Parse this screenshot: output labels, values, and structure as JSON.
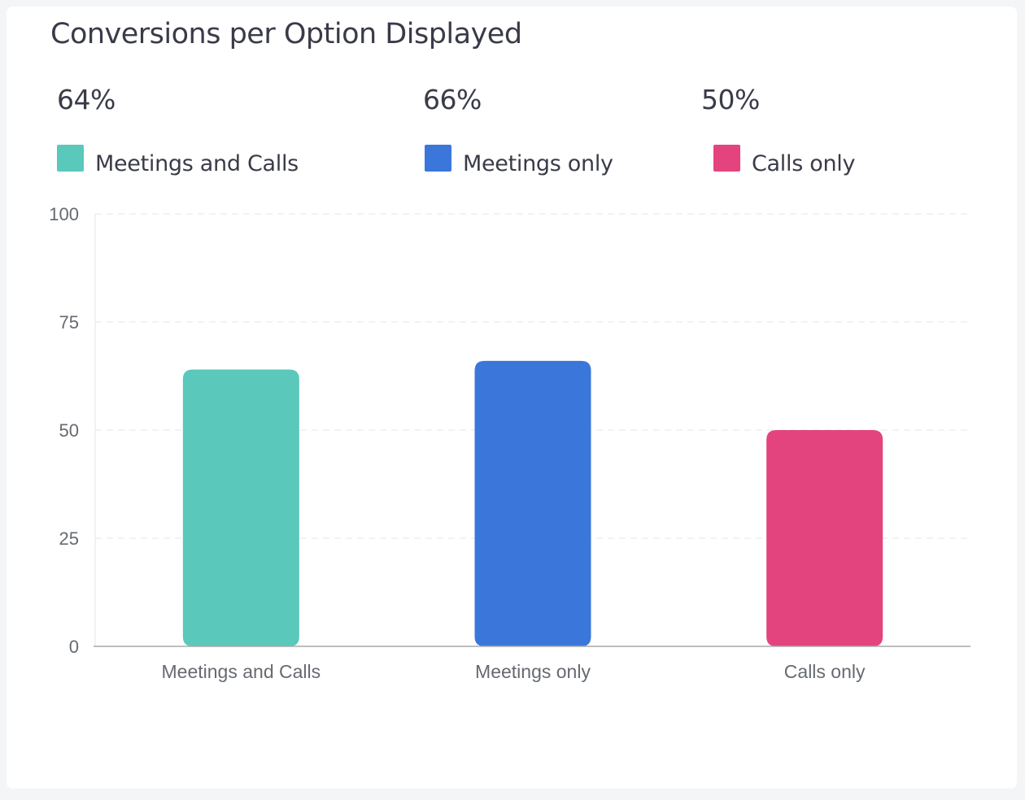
{
  "title": "Conversions per Option Displayed",
  "stats": [
    {
      "value": "64%",
      "label": "Meetings and Calls",
      "color": "#5bc8bc"
    },
    {
      "value": "66%",
      "label": "Meetings only",
      "color": "#3b77db"
    },
    {
      "value": "50%",
      "label": "Calls only",
      "color": "#e4447d"
    }
  ],
  "chart_data": {
    "type": "bar",
    "categories": [
      "Meetings and Calls",
      "Meetings only",
      "Calls only"
    ],
    "values": [
      64,
      66,
      50
    ],
    "colors": [
      "#5bc8bc",
      "#3b77db",
      "#e4447d"
    ],
    "ylim": [
      0,
      100
    ],
    "yticks": [
      "0",
      "25",
      "50",
      "75",
      "100"
    ],
    "grid": true
  }
}
